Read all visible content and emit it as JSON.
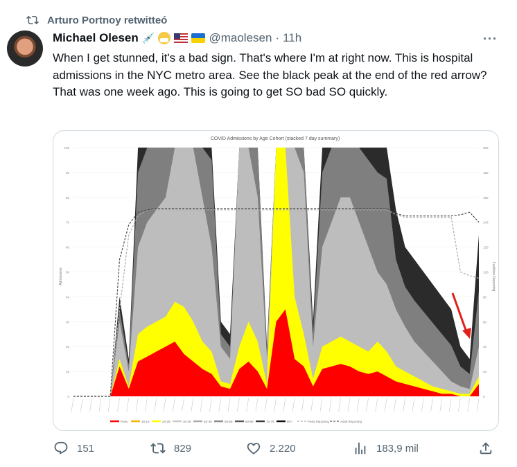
{
  "retweet": {
    "label": "Arturo Portnoy retwitteó",
    "icon": "retweet-icon"
  },
  "tweet": {
    "author_name": "Michael Olesen",
    "emojis": [
      "syringe-icon",
      "mask-face-icon",
      "us-flag-icon",
      "ukraine-flag-icon"
    ],
    "handle": "@maolesen",
    "separator": "·",
    "time": "11h",
    "more": "···",
    "text": "When I get stunned, it's a bad sign. That's where I'm at right now. This is hospital admissions in the NYC metro area. See the black peak at the end of the red arrow? That was one week ago. This is going to get SO bad SO quickly."
  },
  "actions": {
    "replies": "151",
    "retweets": "829",
    "likes": "2.220",
    "views": "183,9 mil"
  },
  "colors": {
    "peds": "#ff0000",
    "a20_29": "#ffff00",
    "a30_39": "#bdbdbd",
    "a50_59": "#7f7f7f",
    "a80": "#2b2b2b",
    "arrow": "#e0201b"
  },
  "chart_data": {
    "type": "area",
    "title": "COVID Admissions by Age Cohort (stacked 7 day summary)",
    "ylabel": "Admissions",
    "y2label": "Facilities Reporting",
    "ylim": [
      0,
      100
    ],
    "y2lim": [
      0,
      200
    ],
    "yticks": [
      "0",
      "10",
      "20",
      "30",
      "40",
      "50",
      "60",
      "70",
      "80",
      "90",
      "100"
    ],
    "y2ticks": [
      "0",
      "20",
      "40",
      "60",
      "80",
      "100",
      "120",
      "140",
      "160",
      "180",
      "200"
    ],
    "legend": [
      "Peds",
      "18-19",
      "20-29",
      "30-39",
      "40-49",
      "50-59",
      "60-69",
      "70-79",
      "80+",
      "Peds Reporting",
      "Adult Reporting"
    ],
    "legend_position": "bottom",
    "stack_tops": {
      "Peds": [
        0,
        0,
        0,
        0,
        0,
        12,
        3,
        14,
        16,
        18,
        20,
        22,
        17,
        14,
        11,
        9,
        4,
        3,
        11,
        14,
        10,
        3,
        30,
        35,
        15,
        12,
        4,
        11,
        12,
        13,
        12,
        10,
        9,
        10,
        8,
        6,
        5,
        4,
        3,
        2,
        1,
        1,
        0,
        0,
        5
      ],
      "20-29": [
        0,
        0,
        0,
        0,
        0,
        15,
        4,
        25,
        28,
        30,
        32,
        38,
        36,
        30,
        22,
        18,
        6,
        5,
        20,
        30,
        22,
        5,
        100,
        100,
        40,
        25,
        7,
        20,
        22,
        24,
        22,
        20,
        18,
        22,
        18,
        12,
        10,
        8,
        6,
        4,
        3,
        2,
        1,
        1,
        8
      ],
      "30-39": [
        0,
        0,
        0,
        0,
        0,
        30,
        10,
        60,
        70,
        75,
        80,
        110,
        120,
        110,
        80,
        60,
        20,
        15,
        110,
        120,
        80,
        15,
        120,
        110,
        120,
        90,
        20,
        60,
        70,
        80,
        80,
        70,
        60,
        50,
        45,
        35,
        28,
        22,
        18,
        14,
        10,
        6,
        4,
        3,
        20
      ],
      "80+": [
        0,
        0,
        0,
        0,
        0,
        40,
        15,
        120,
        130,
        130,
        130,
        130,
        130,
        130,
        130,
        130,
        30,
        25,
        130,
        130,
        130,
        20,
        130,
        130,
        130,
        130,
        30,
        120,
        130,
        130,
        130,
        130,
        130,
        130,
        130,
        75,
        60,
        55,
        50,
        45,
        40,
        35,
        20,
        15,
        65
      ]
    },
    "adult_reporting": [
      0,
      0,
      0,
      0,
      0,
      110,
      138,
      148,
      150,
      151,
      151,
      151,
      151,
      151,
      151,
      151,
      151,
      151,
      151,
      151,
      151,
      151,
      151,
      151,
      151,
      151,
      151,
      151,
      151,
      151,
      151,
      151,
      151,
      151,
      151,
      147,
      145,
      145,
      145,
      145,
      145,
      145,
      146,
      148,
      140
    ],
    "peds_reporting": [
      0,
      0,
      0,
      0,
      0,
      70,
      130,
      145,
      150,
      150,
      150,
      150,
      150,
      150,
      150,
      150,
      150,
      150,
      150,
      150,
      150,
      150,
      150,
      150,
      150,
      150,
      150,
      150,
      150,
      150,
      150,
      150,
      150,
      150,
      150,
      146,
      144,
      144,
      144,
      144,
      144,
      144,
      100,
      97,
      95
    ]
  }
}
